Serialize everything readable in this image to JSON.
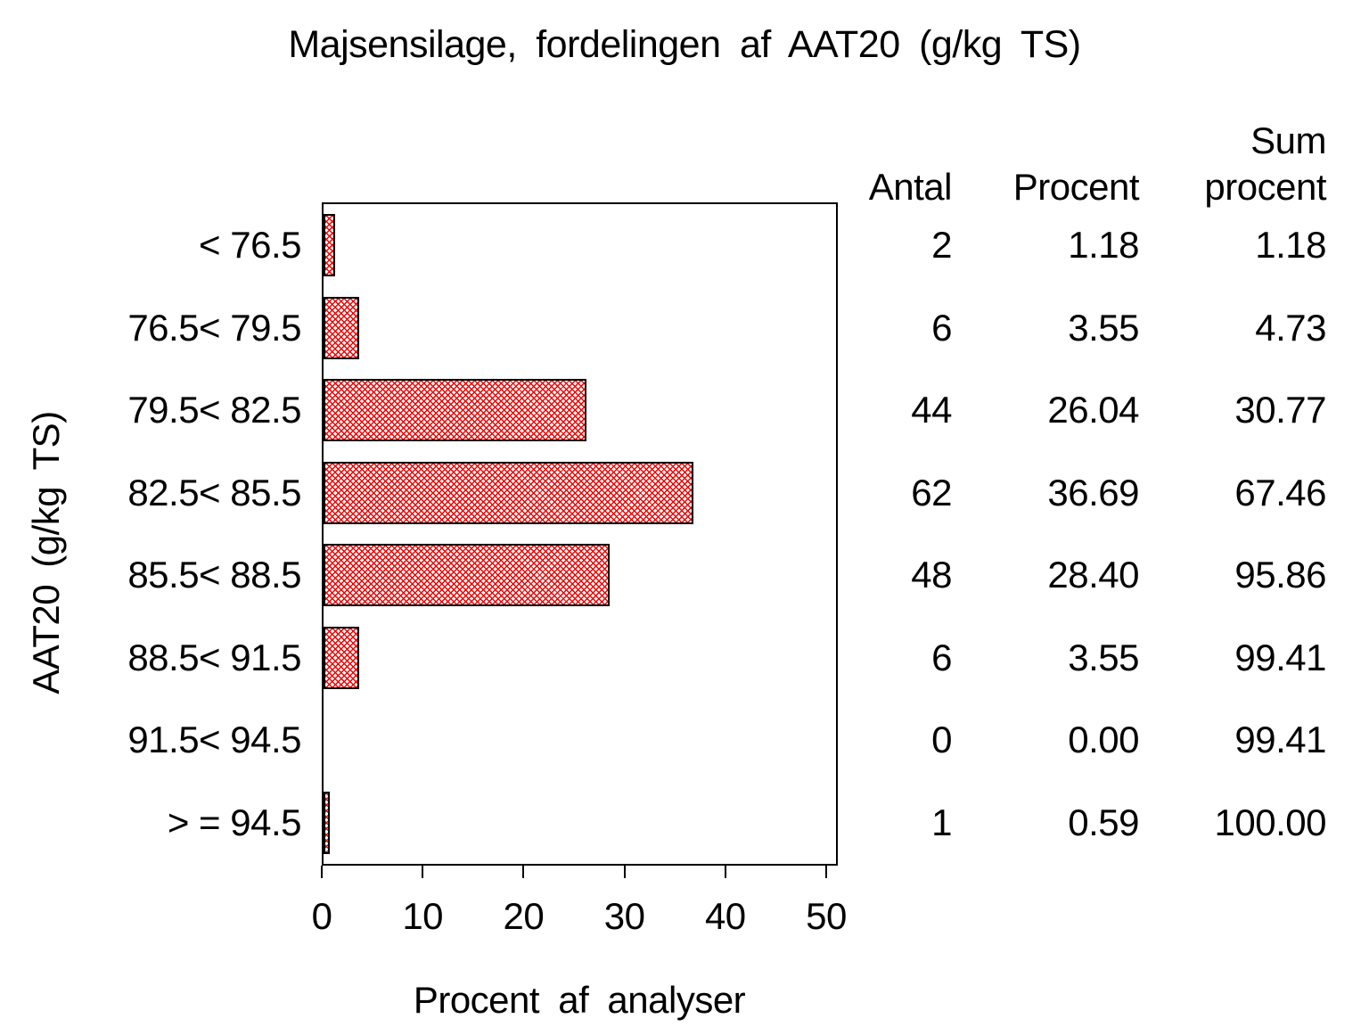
{
  "title": "Majsensilage, fordelingen af AAT20 (g/kg TS)",
  "colors": {
    "background": "#ffffff",
    "text": "#000000",
    "bar_border": "#000000",
    "bar_hatch": "#ee0000",
    "frame": "#000000"
  },
  "chart_data": {
    "type": "bar",
    "orientation": "horizontal",
    "title": "Majsensilage, fordelingen af AAT20 (g/kg TS)",
    "xlabel": "Procent af analyser",
    "ylabel": "AAT20 (g/kg TS)",
    "categories": [
      "< 76.5",
      "76.5< 79.5",
      "79.5< 82.5",
      "82.5< 85.5",
      "85.5< 88.5",
      "88.5< 91.5",
      "91.5< 94.5",
      "> = 94.5"
    ],
    "values": [
      1.18,
      3.55,
      26.04,
      36.69,
      28.4,
      3.55,
      0.0,
      0.59
    ],
    "xlim": [
      0,
      50
    ],
    "xticks": [
      0,
      10,
      20,
      30,
      40,
      50
    ],
    "grid": false,
    "legend_position": "none",
    "bar_fill": "red diagonal crosshatch on white with black outline"
  },
  "table": {
    "header_line1": [
      "",
      "",
      "Sum"
    ],
    "header_line2": [
      "Antal",
      "Procent",
      "procent"
    ],
    "columns": [
      "Antal",
      "Procent",
      "Sum procent"
    ],
    "rows": [
      [
        "2",
        "1.18",
        "1.18"
      ],
      [
        "6",
        "3.55",
        "4.73"
      ],
      [
        "44",
        "26.04",
        "30.77"
      ],
      [
        "62",
        "36.69",
        "67.46"
      ],
      [
        "48",
        "28.40",
        "95.86"
      ],
      [
        "6",
        "3.55",
        "99.41"
      ],
      [
        "0",
        "0.00",
        "99.41"
      ],
      [
        "1",
        "0.59",
        "100.00"
      ]
    ]
  }
}
